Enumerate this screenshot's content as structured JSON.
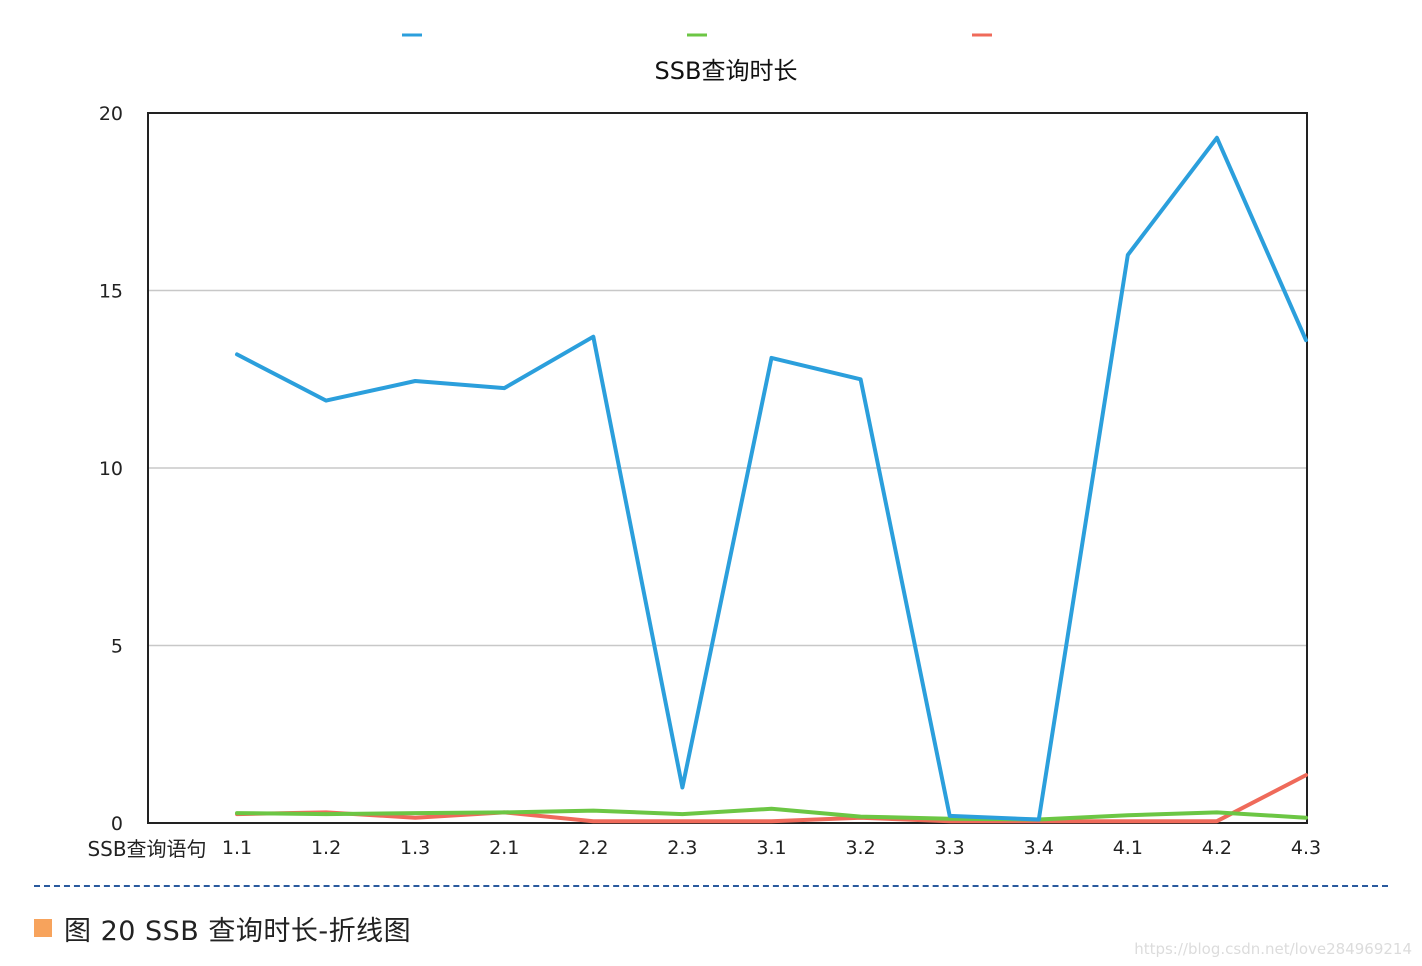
{
  "chart_data": {
    "type": "line",
    "title": "SSB查询时长",
    "xlabel": "SSB查询语句",
    "ylabel": "",
    "categories": [
      "1.1",
      "1.2",
      "1.3",
      "2.1",
      "2.2",
      "2.3",
      "3.1",
      "3.2",
      "3.3",
      "3.4",
      "4.1",
      "4.2",
      "4.3"
    ],
    "ylim": [
      0,
      20
    ],
    "yticks": [
      0,
      5,
      10,
      15,
      20
    ],
    "grid": true,
    "legend_position": "top",
    "series": [
      {
        "color": "#2b9fdc",
        "values": [
          13.2,
          11.9,
          12.45,
          12.25,
          13.7,
          1.0,
          13.1,
          12.5,
          0.2,
          0.1,
          16.0,
          19.3,
          13.6
        ]
      },
      {
        "color": "#6cc644",
        "values": [
          0.28,
          0.25,
          0.28,
          0.3,
          0.35,
          0.25,
          0.4,
          0.18,
          0.12,
          0.1,
          0.22,
          0.3,
          0.15
        ]
      },
      {
        "color": "#ef6a5a",
        "values": [
          0.25,
          0.3,
          0.15,
          0.3,
          0.05,
          0.05,
          0.05,
          0.15,
          0.05,
          0.05,
          0.05,
          0.05,
          1.35
        ]
      }
    ]
  },
  "caption": {
    "text": "图 20 SSB 查询时长-折线图",
    "marker_color": "#f7a35c"
  },
  "watermark": "https://blog.csdn.net/love284969214"
}
